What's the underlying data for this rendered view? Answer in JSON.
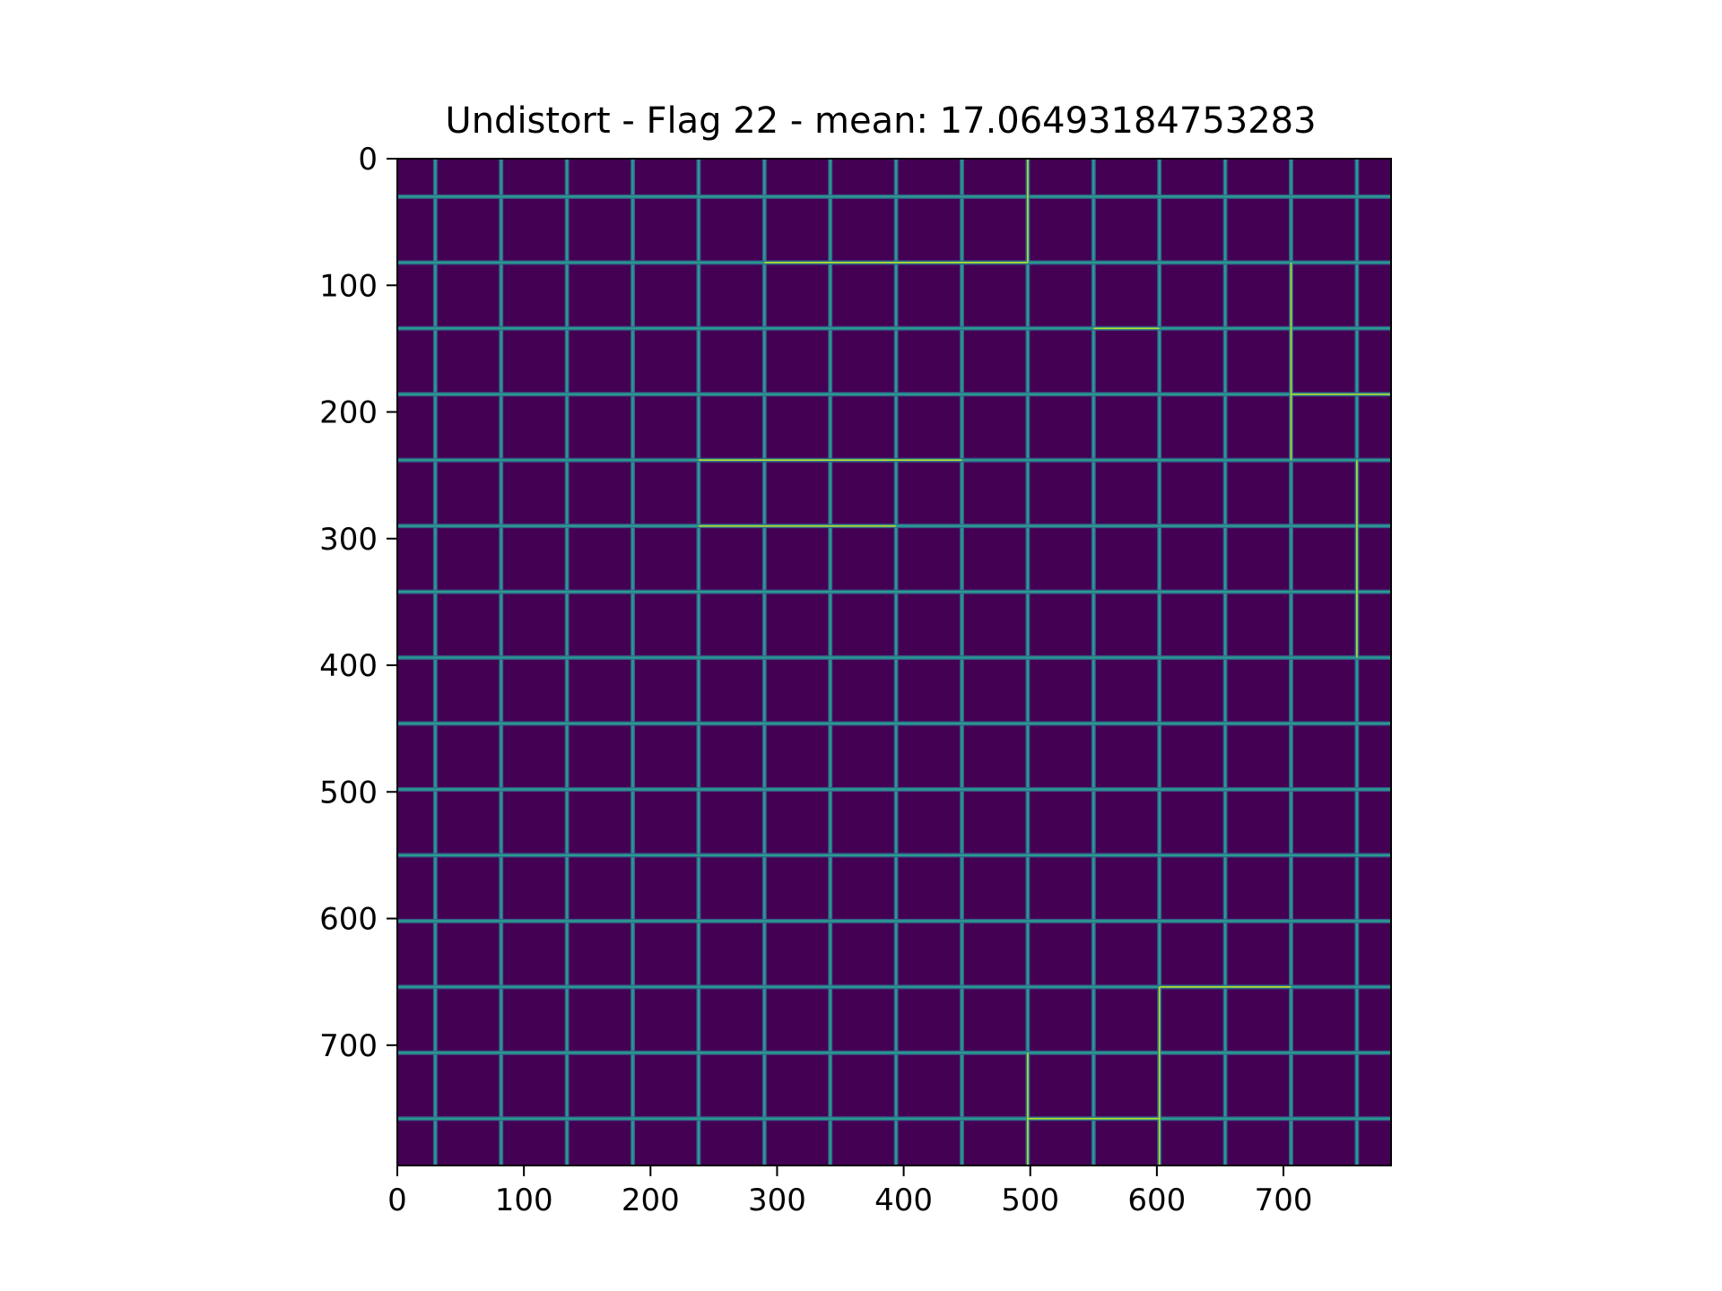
{
  "chart_data": {
    "type": "heatmap",
    "title": "Undistort - Flag 22 - mean: 17.06493184753283",
    "xlabel": "",
    "ylabel": "",
    "x_ticks": [
      0,
      100,
      200,
      300,
      400,
      500,
      600,
      700
    ],
    "y_ticks": [
      0,
      100,
      200,
      300,
      400,
      500,
      600,
      700
    ],
    "x_tick_labels": [
      "0",
      "100",
      "200",
      "300",
      "400",
      "500",
      "600",
      "700"
    ],
    "y_tick_labels": [
      "0",
      "100",
      "200",
      "300",
      "400",
      "500",
      "600",
      "700"
    ],
    "xlim": [
      0,
      785
    ],
    "ylim": [
      795,
      0
    ],
    "colormap": "viridis",
    "background_color": "#440154",
    "grid_line_color": "#2a9d8f",
    "highlight_color": "#b5de2b",
    "vertical_lines_x": [
      30,
      82,
      134,
      186,
      238,
      290,
      342,
      394,
      446,
      498,
      550,
      602,
      654,
      706,
      758
    ],
    "horizontal_lines_y": [
      30,
      82,
      134,
      186,
      238,
      290,
      342,
      394,
      446,
      498,
      550,
      602,
      654,
      706,
      758
    ],
    "highlighted_segments": [
      {
        "orientation": "h",
        "y": 82,
        "x0": 290,
        "x1": 498
      },
      {
        "orientation": "h",
        "y": 134,
        "x0": 550,
        "x1": 602
      },
      {
        "orientation": "h",
        "y": 186,
        "x0": 706,
        "x1": 785
      },
      {
        "orientation": "h",
        "y": 238,
        "x0": 238,
        "x1": 446
      },
      {
        "orientation": "h",
        "y": 290,
        "x0": 238,
        "x1": 394
      },
      {
        "orientation": "h",
        "y": 654,
        "x0": 602,
        "x1": 706
      },
      {
        "orientation": "h",
        "y": 758,
        "x0": 498,
        "x1": 602
      },
      {
        "orientation": "v",
        "x": 498,
        "y0": 0,
        "y1": 82
      },
      {
        "orientation": "v",
        "x": 706,
        "y0": 82,
        "y1": 238
      },
      {
        "orientation": "v",
        "x": 758,
        "y0": 238,
        "y1": 394
      },
      {
        "orientation": "v",
        "x": 498,
        "y0": 706,
        "y1": 795
      },
      {
        "orientation": "v",
        "x": 602,
        "y0": 654,
        "y1": 795
      }
    ]
  }
}
